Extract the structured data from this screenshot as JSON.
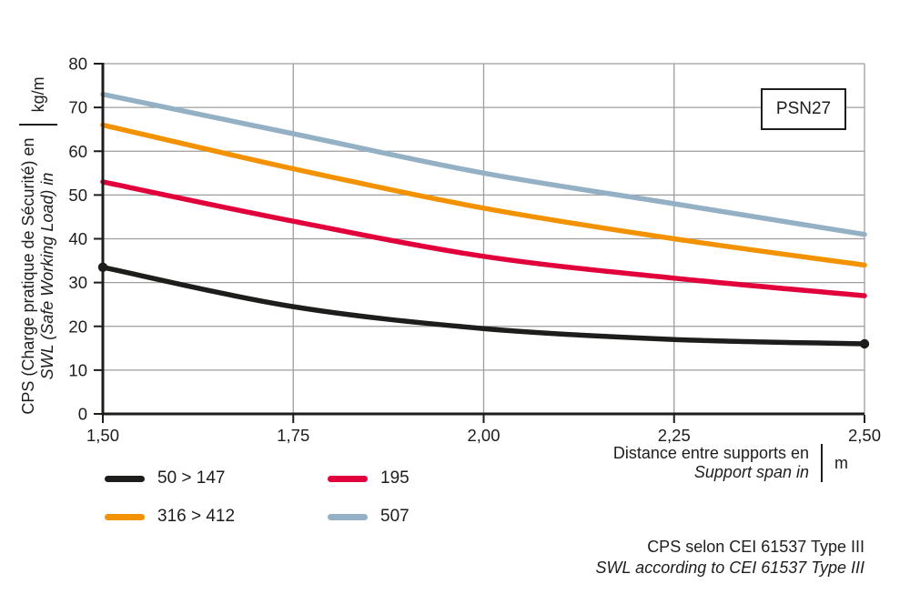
{
  "figure": {
    "model_label": "PSN27",
    "caption_line1": "CPS selon CEI 61537 Type III",
    "caption_line2": "SWL according to CEI 61537 Type III"
  },
  "axes": {
    "y_label_fr": "CPS (Charge pratique de Sécurité) en",
    "y_label_en": "SWL (Safe Working Load) in",
    "y_unit": "kg/m",
    "x_label_fr": "Distance entre supports en",
    "x_label_en": "Support span in",
    "x_unit": "m"
  },
  "chart_data": {
    "type": "line",
    "title": "",
    "xlabel": "Distance entre supports en / Support span in (m)",
    "ylabel": "CPS (Charge pratique de Sécurité) / SWL (Safe Working Load) (kg/m)",
    "xlim": [
      1.5,
      2.5
    ],
    "ylim": [
      0,
      80
    ],
    "grid": true,
    "x": [
      1.5,
      1.75,
      2.0,
      2.25,
      2.5
    ],
    "x_tick_labels": [
      "1,50",
      "1,75",
      "2,00",
      "2,25",
      "2,50"
    ],
    "y_ticks": [
      0,
      10,
      20,
      30,
      40,
      50,
      60,
      70,
      80
    ],
    "y_tick_labels": [
      "0",
      "10",
      "20",
      "30",
      "40",
      "50",
      "60",
      "70",
      "80"
    ],
    "series": [
      {
        "name": "507",
        "color": "#93b0c5",
        "values": [
          73,
          64,
          55,
          48,
          41
        ],
        "endpoint_markers": false
      },
      {
        "name": "316 > 412",
        "color": "#f39200",
        "values": [
          66,
          56,
          47,
          40,
          34
        ],
        "endpoint_markers": false
      },
      {
        "name": "195",
        "color": "#e2003c",
        "values": [
          53,
          44,
          36,
          31,
          27
        ],
        "endpoint_markers": false
      },
      {
        "name": "50 > 147",
        "color": "#1d1d1b",
        "values": [
          33.5,
          24.5,
          19.5,
          17,
          16
        ],
        "endpoint_markers": true
      }
    ],
    "legend": [
      {
        "label": "50 > 147",
        "color": "#1d1d1b"
      },
      {
        "label": "195",
        "color": "#e2003c"
      },
      {
        "label": "316 > 412",
        "color": "#f39200"
      },
      {
        "label": "507",
        "color": "#93b0c5"
      }
    ],
    "legend_position": "bottom-left",
    "colors": {
      "grid": "#9d9d9c",
      "axis": "#1d1d1b"
    }
  }
}
